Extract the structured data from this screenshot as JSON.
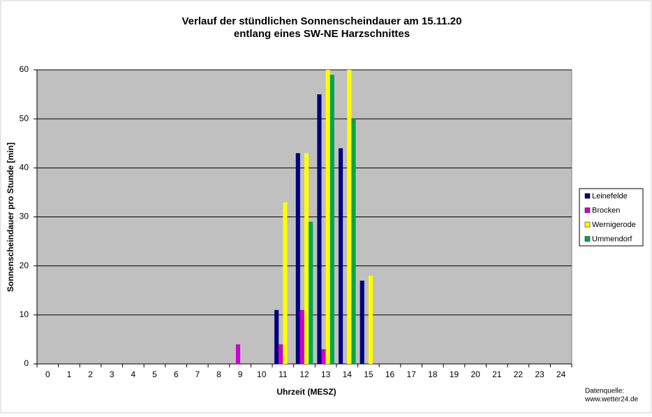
{
  "chart_data": {
    "type": "bar",
    "title": "Verlauf der stündlichen Sonnenscheindauer am 15.11.20",
    "subtitle": "entlang eines SW-NE Harzschnittes",
    "x_label": "Uhrzeit (MESZ)",
    "y_label": "Sonnenscheindauer pro Stunde [min]",
    "source": [
      "Datenquelle:",
      "www.wetter24.de"
    ],
    "categories": [
      "0",
      "1",
      "2",
      "3",
      "4",
      "5",
      "6",
      "7",
      "8",
      "9",
      "10",
      "11",
      "12",
      "13",
      "14",
      "15",
      "16",
      "17",
      "18",
      "19",
      "20",
      "21",
      "22",
      "23",
      "24"
    ],
    "series": [
      {
        "name": "Leinefelde",
        "color": "#000080",
        "values": [
          0,
          0,
          0,
          0,
          0,
          0,
          0,
          0,
          0,
          0,
          0,
          11,
          43,
          55,
          44,
          17,
          0,
          0,
          0,
          0,
          0,
          0,
          0,
          0,
          0
        ]
      },
      {
        "name": "Brocken",
        "color": "#cc00cc",
        "values": [
          0,
          0,
          0,
          0,
          0,
          0,
          0,
          0,
          0,
          4,
          0,
          4,
          11,
          3,
          0,
          0,
          0,
          0,
          0,
          0,
          0,
          0,
          0,
          0,
          0
        ]
      },
      {
        "name": "Wernigerode",
        "color": "#ffff00",
        "values": [
          0,
          0,
          0,
          0,
          0,
          0,
          0,
          0,
          0,
          0,
          0,
          33,
          43,
          60,
          60,
          18,
          0,
          0,
          0,
          0,
          0,
          0,
          0,
          0,
          0
        ]
      },
      {
        "name": "Ummendorf",
        "color": "#00a550",
        "values": [
          0,
          0,
          0,
          0,
          0,
          0,
          0,
          0,
          0,
          0,
          0,
          0,
          29,
          59,
          50,
          0,
          0,
          0,
          0,
          0,
          0,
          0,
          0,
          0,
          0
        ]
      }
    ],
    "ylim": [
      0,
      60
    ],
    "yticks": [
      0,
      10,
      20,
      30,
      40,
      50,
      60
    ],
    "grid": true,
    "legend": "right"
  }
}
